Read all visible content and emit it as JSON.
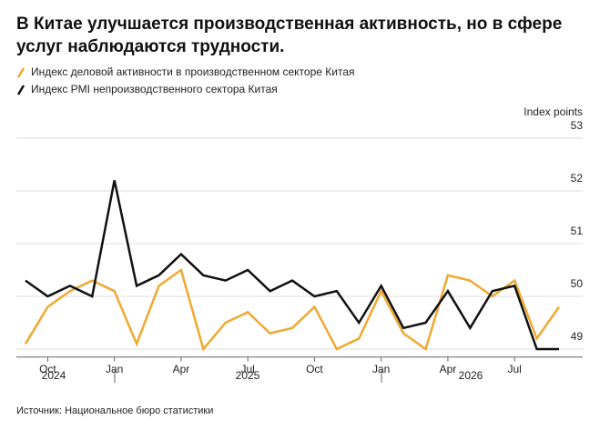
{
  "chart_data": {
    "type": "line",
    "title": "В Китае улучшается производственная активность, но в сфере услуг наблюдаются трудности.",
    "y_label": "Index points",
    "source": "Источник: Национальное бюро статистики",
    "categories": [
      null,
      "Oct",
      null,
      null,
      "Jan",
      null,
      null,
      "Apr",
      null,
      null,
      "Jul",
      null,
      null,
      "Oct",
      null,
      null,
      "Jan",
      null,
      null,
      "Apr",
      null,
      null,
      "Jul",
      null,
      null
    ],
    "year_labels": [
      "2024",
      "2025",
      "2026"
    ],
    "series": [
      {
        "name": "Индекс деловой активности в производственном секторе Китая",
        "color": "#f0a830",
        "values": [
          49.1,
          49.8,
          50.1,
          50.3,
          50.1,
          49.1,
          50.2,
          50.5,
          49.0,
          49.5,
          49.7,
          49.3,
          49.4,
          49.8,
          49.0,
          49.2,
          50.1,
          49.3,
          49.0,
          50.4,
          50.3,
          50.0,
          50.3,
          49.2,
          49.8
        ]
      },
      {
        "name": "Индекс PMI непроизводственного сектора Китая",
        "color": "#111111",
        "values": [
          50.3,
          50.0,
          50.2,
          50.0,
          52.2,
          50.2,
          50.4,
          50.8,
          50.4,
          50.3,
          50.5,
          50.1,
          50.3,
          50.0,
          50.1,
          49.5,
          50.2,
          49.4,
          49.5,
          50.1,
          49.4,
          50.1,
          50.2,
          49.0,
          49.0
        ]
      }
    ],
    "ylim": [
      48.85,
      53
    ],
    "yticks": [
      49,
      50,
      51,
      52,
      53
    ],
    "grid": true
  }
}
